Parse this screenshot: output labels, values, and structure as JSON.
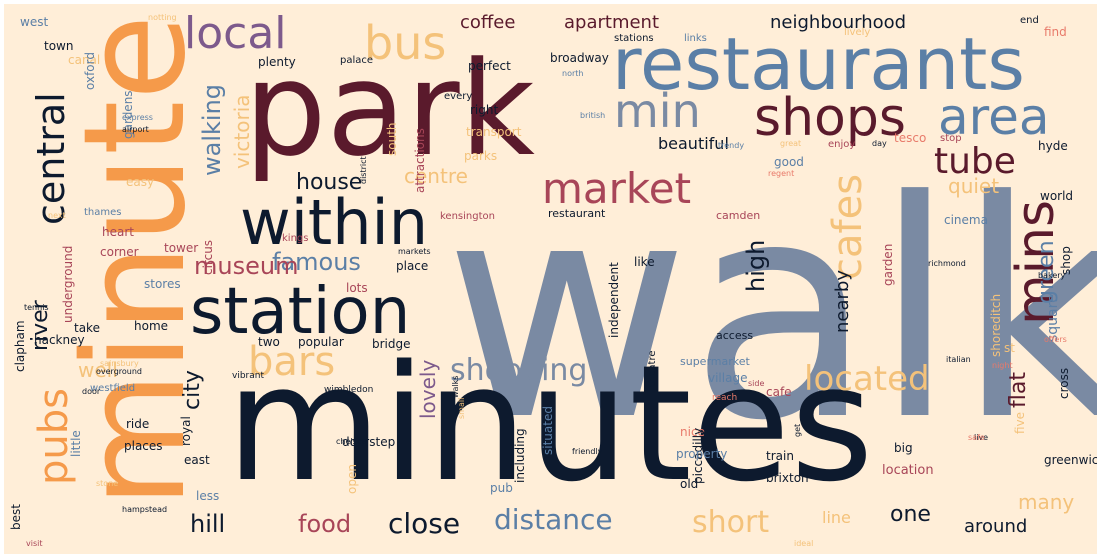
{
  "palette": {
    "background": "#ffeed8",
    "navy": "#0d1a2e",
    "maroon": "#5a1a2c",
    "slate": "#7a8aa3",
    "steel": "#5b7fa6",
    "plum": "#7d5a8c",
    "orange": "#f59a4a",
    "gold": "#f4c27a",
    "rose": "#a84558",
    "coral": "#e87a6a"
  },
  "words": [
    {
      "text": "walk",
      "color": "slate"
    },
    {
      "text": "minutes",
      "color": "navy"
    },
    {
      "text": "park",
      "color": "maroon"
    },
    {
      "text": "minute",
      "color": "orange"
    },
    {
      "text": "restaurants",
      "color": "steel"
    },
    {
      "text": "station",
      "color": "navy"
    },
    {
      "text": "within",
      "color": "navy"
    },
    {
      "text": "shops",
      "color": "maroon"
    },
    {
      "text": "area",
      "color": "steel"
    },
    {
      "text": "market",
      "color": "rose"
    },
    {
      "text": "local",
      "color": "plum"
    },
    {
      "text": "bus",
      "color": "gold"
    },
    {
      "text": "min",
      "color": "slate"
    },
    {
      "text": "tube",
      "color": "maroon"
    },
    {
      "text": "central",
      "color": "navy"
    },
    {
      "text": "mins",
      "color": "maroon"
    },
    {
      "text": "cafes",
      "color": "gold"
    },
    {
      "text": "bars",
      "color": "gold"
    },
    {
      "text": "pubs",
      "color": "orange"
    },
    {
      "text": "located",
      "color": "gold"
    },
    {
      "text": "shopping",
      "color": "slate"
    },
    {
      "text": "distance",
      "color": "steel"
    },
    {
      "text": "short",
      "color": "gold"
    },
    {
      "text": "close",
      "color": "navy"
    },
    {
      "text": "food",
      "color": "rose"
    },
    {
      "text": "hill",
      "color": "navy"
    },
    {
      "text": "famous",
      "color": "steel"
    },
    {
      "text": "museum",
      "color": "rose"
    },
    {
      "text": "house",
      "color": "navy"
    },
    {
      "text": "centre",
      "color": "gold"
    },
    {
      "text": "walking",
      "color": "steel"
    },
    {
      "text": "victoria",
      "color": "gold"
    },
    {
      "text": "river",
      "color": "navy"
    },
    {
      "text": "well",
      "color": "gold"
    },
    {
      "text": "city",
      "color": "navy"
    },
    {
      "text": "lovely",
      "color": "plum"
    },
    {
      "text": "high",
      "color": "navy"
    },
    {
      "text": "nearby",
      "color": "navy"
    },
    {
      "text": "green",
      "color": "steel"
    },
    {
      "text": "flat",
      "color": "maroon"
    },
    {
      "text": "many",
      "color": "gold"
    },
    {
      "text": "around",
      "color": "navy"
    },
    {
      "text": "one",
      "color": "navy"
    },
    {
      "text": "quiet",
      "color": "gold"
    },
    {
      "text": "neighbourhood",
      "color": "navy"
    },
    {
      "text": "apartment",
      "color": "maroon"
    },
    {
      "text": "coffee",
      "color": "maroon"
    },
    {
      "text": "beautiful",
      "color": "navy"
    },
    {
      "text": "square",
      "color": "steel"
    },
    {
      "text": "line",
      "color": "gold"
    },
    {
      "text": "location",
      "color": "rose"
    },
    {
      "text": "supermarket",
      "color": "steel"
    },
    {
      "text": "access",
      "color": "navy"
    },
    {
      "text": "restaurant",
      "color": "navy"
    },
    {
      "text": "camden",
      "color": "rose"
    },
    {
      "text": "kensington",
      "color": "rose"
    },
    {
      "text": "cinema",
      "color": "steel"
    },
    {
      "text": "tesco",
      "color": "coral"
    },
    {
      "text": "good",
      "color": "steel"
    },
    {
      "text": "enjoy",
      "color": "rose"
    },
    {
      "text": "hyde",
      "color": "navy"
    },
    {
      "text": "shop",
      "color": "navy"
    },
    {
      "text": "cafe",
      "color": "rose"
    },
    {
      "text": "nice",
      "color": "coral"
    },
    {
      "text": "train",
      "color": "navy"
    },
    {
      "text": "brixton",
      "color": "navy"
    },
    {
      "text": "pub",
      "color": "steel"
    },
    {
      "text": "including",
      "color": "navy"
    },
    {
      "text": "situated",
      "color": "steel"
    },
    {
      "text": "village",
      "color": "steel"
    },
    {
      "text": "reach",
      "color": "coral"
    },
    {
      "text": "independent",
      "color": "navy"
    },
    {
      "text": "wimbledon",
      "color": "navy"
    },
    {
      "text": "bridge",
      "color": "navy"
    },
    {
      "text": "two",
      "color": "navy"
    },
    {
      "text": "popular",
      "color": "navy"
    },
    {
      "text": "home",
      "color": "navy"
    },
    {
      "text": "take",
      "color": "navy"
    },
    {
      "text": "ride",
      "color": "navy"
    },
    {
      "text": "places",
      "color": "navy"
    },
    {
      "text": "east",
      "color": "navy"
    },
    {
      "text": "less",
      "color": "steel"
    },
    {
      "text": "royal",
      "color": "navy"
    },
    {
      "text": "hackney",
      "color": "navy"
    },
    {
      "text": "westfield",
      "color": "steel"
    },
    {
      "text": "vibrant",
      "color": "navy"
    },
    {
      "text": "clapham",
      "color": "navy"
    },
    {
      "text": "heart",
      "color": "rose"
    },
    {
      "text": "corner",
      "color": "rose"
    },
    {
      "text": "underground",
      "color": "rose"
    },
    {
      "text": "tower",
      "color": "rose"
    },
    {
      "text": "stores",
      "color": "steel"
    },
    {
      "text": "circus",
      "color": "rose"
    },
    {
      "text": "lots",
      "color": "rose"
    },
    {
      "text": "place",
      "color": "navy"
    },
    {
      "text": "like",
      "color": "navy"
    },
    {
      "text": "easy",
      "color": "gold"
    },
    {
      "text": "thames",
      "color": "steel"
    },
    {
      "text": "kings",
      "color": "rose"
    },
    {
      "text": "garden",
      "color": "rose"
    },
    {
      "text": "gardens",
      "color": "steel"
    },
    {
      "text": "canal",
      "color": "gold"
    },
    {
      "text": "town",
      "color": "navy"
    },
    {
      "text": "west",
      "color": "steel"
    },
    {
      "text": "oxford",
      "color": "steel"
    },
    {
      "text": "attractions",
      "color": "rose"
    },
    {
      "text": "transport",
      "color": "gold"
    },
    {
      "text": "parks",
      "color": "gold"
    },
    {
      "text": "right",
      "color": "navy"
    },
    {
      "text": "perfect",
      "color": "navy"
    },
    {
      "text": "plenty",
      "color": "navy"
    },
    {
      "text": "palace",
      "color": "navy"
    },
    {
      "text": "broadway",
      "color": "navy"
    },
    {
      "text": "south",
      "color": "gold"
    },
    {
      "text": "find",
      "color": "coral"
    },
    {
      "text": "end",
      "color": "navy"
    },
    {
      "text": "stop",
      "color": "rose"
    },
    {
      "text": "links",
      "color": "steel"
    },
    {
      "text": "stations",
      "color": "navy"
    },
    {
      "text": "world",
      "color": "navy"
    },
    {
      "text": "theatre",
      "color": "navy"
    },
    {
      "text": "piccadilly",
      "color": "navy"
    },
    {
      "text": "shoreditch",
      "color": "gold"
    },
    {
      "text": "cross",
      "color": "navy"
    },
    {
      "text": "property",
      "color": "steel"
    },
    {
      "text": "old",
      "color": "navy"
    },
    {
      "text": "big",
      "color": "navy"
    },
    {
      "text": "little",
      "color": "steel"
    },
    {
      "text": "best",
      "color": "navy"
    },
    {
      "text": "doorstep",
      "color": "navy"
    },
    {
      "text": "open",
      "color": "gold"
    },
    {
      "text": "st",
      "color": "gold"
    },
    {
      "text": "five",
      "color": "gold"
    },
    {
      "text": "notting",
      "color": "gold"
    },
    {
      "text": "every",
      "color": "navy"
    },
    {
      "text": "great",
      "color": "gold"
    },
    {
      "text": "lively",
      "color": "gold"
    },
    {
      "text": "chelsea",
      "color": "navy"
    },
    {
      "text": "walks",
      "color": "navy"
    },
    {
      "text": "friendly",
      "color": "navy"
    },
    {
      "text": "greenwich",
      "color": "navy"
    },
    {
      "text": "day",
      "color": "navy"
    },
    {
      "text": "get",
      "color": "navy"
    },
    {
      "text": "hampstead",
      "color": "navy"
    },
    {
      "text": "sainsbury",
      "color": "gold"
    },
    {
      "text": "door",
      "color": "navy"
    },
    {
      "text": "trendy",
      "color": "steel"
    },
    {
      "text": "small",
      "color": "gold"
    },
    {
      "text": "next",
      "color": "gold"
    },
    {
      "text": "airport",
      "color": "navy"
    },
    {
      "text": "express",
      "color": "steel"
    },
    {
      "text": "tennis",
      "color": "navy"
    },
    {
      "text": "stone",
      "color": "gold"
    },
    {
      "text": "visit",
      "color": "rose"
    },
    {
      "text": "ideal",
      "color": "gold"
    },
    {
      "text": "side",
      "color": "rose"
    },
    {
      "text": "british",
      "color": "steel"
    },
    {
      "text": "north",
      "color": "steel"
    },
    {
      "text": "regent",
      "color": "coral"
    },
    {
      "text": "live",
      "color": "navy"
    },
    {
      "text": "italian",
      "color": "navy"
    },
    {
      "text": "bakery",
      "color": "navy"
    },
    {
      "text": "night",
      "color": "coral"
    },
    {
      "text": "safe",
      "color": "coral"
    },
    {
      "text": "offers",
      "color": "coral"
    },
    {
      "text": "overground",
      "color": "navy"
    },
    {
      "text": "markets",
      "color": "navy"
    },
    {
      "text": "district",
      "color": "navy"
    },
    {
      "text": "richmond",
      "color": "navy"
    },
    {
      "text": "convenient",
      "color": "gold"
    }
  ]
}
